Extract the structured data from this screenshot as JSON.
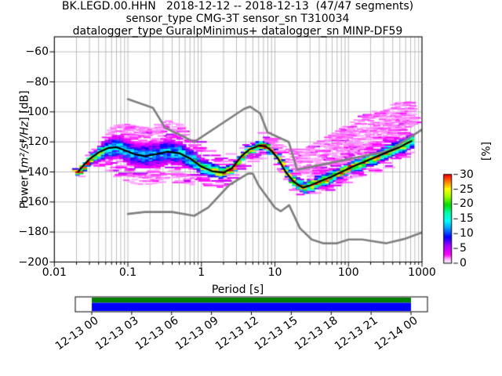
{
  "titles": {
    "line1": "BK.LEGD.00.HHN   2018-12-12 -- 2018-12-13  (47/47 segments)",
    "line2": "sensor_type CMG-3T sensor_sn T310034",
    "line3": "datalogger_type GuralpMinimus+ datalogger_sn MINP-DF59"
  },
  "axes": {
    "xlabel": "Period [s]",
    "ylabel_prefix": "Power [",
    "ylabel_math": "m²/s⁴/Hz",
    "ylabel_suffix": "] [dB]",
    "x_tick_labels": [
      "0.01",
      "0.1",
      "1",
      "10",
      "100",
      "1000"
    ],
    "x_tick_values": [
      0.01,
      0.1,
      1,
      10,
      100,
      1000
    ],
    "y_tick_labels": [
      "−60",
      "−80",
      "−100",
      "−120",
      "−140",
      "−160",
      "−180",
      "−200"
    ],
    "y_tick_values": [
      -60,
      -80,
      -100,
      -120,
      -140,
      -160,
      -180,
      -200
    ],
    "xlim": [
      0.01,
      1000
    ],
    "ylim": [
      -200,
      -50
    ],
    "xscale": "log",
    "grid_color": "#b4b4b4",
    "spine_color": "#000000"
  },
  "colorbar": {
    "label": "[%]",
    "tick_labels": [
      "0",
      "5",
      "10",
      "15",
      "20",
      "25",
      "30"
    ],
    "tick_values": [
      0,
      5,
      10,
      15,
      20,
      25,
      30
    ],
    "range": [
      0,
      30
    ],
    "colormap_stops": [
      [
        0.0,
        "#ffffff"
      ],
      [
        0.05,
        "#ffb3ff"
      ],
      [
        0.1,
        "#ff00ff"
      ],
      [
        0.2,
        "#aa00ff"
      ],
      [
        0.3,
        "#0000ff"
      ],
      [
        0.4,
        "#00a0ff"
      ],
      [
        0.48,
        "#00ffff"
      ],
      [
        0.57,
        "#00ffaa"
      ],
      [
        0.66,
        "#00dd00"
      ],
      [
        0.76,
        "#aaff00"
      ],
      [
        0.84,
        "#ffff00"
      ],
      [
        0.92,
        "#ff8000"
      ],
      [
        1.0,
        "#ff0000"
      ]
    ]
  },
  "timeline": {
    "tick_labels": [
      "12-13 00",
      "12-13 03",
      "12-13 06",
      "12-13 09",
      "12-13 12",
      "12-13 15",
      "12-13 18",
      "12-13 21",
      "12-14 00"
    ],
    "coverage_top_color": "#007f00",
    "coverage_bottom_color": "#0000ff",
    "bar_background": "#ffffff"
  },
  "chart_data": {
    "type": "heatmap",
    "title": "BK.LEGD.00.HHN   2018-12-12 -- 2018-12-13  (47/47 segments)",
    "xlabel": "Period [s]",
    "ylabel": "Power [m²/s⁴/Hz] [dB]",
    "xlim": [
      0.01,
      1000
    ],
    "xscale": "log",
    "ylim": [
      -200,
      -50
    ],
    "grid": true,
    "colorbar_label": "[%]",
    "percent_range": [
      0,
      30
    ],
    "mode_line": {
      "name": "psd-mode-line",
      "color": "#000000",
      "points": [
        [
          0.021,
          -140
        ],
        [
          0.025,
          -135.5
        ],
        [
          0.03,
          -131.5
        ],
        [
          0.04,
          -127
        ],
        [
          0.055,
          -124
        ],
        [
          0.07,
          -123.5
        ],
        [
          0.09,
          -125.5
        ],
        [
          0.12,
          -128
        ],
        [
          0.17,
          -129.5
        ],
        [
          0.25,
          -128
        ],
        [
          0.35,
          -126.5
        ],
        [
          0.5,
          -127.5
        ],
        [
          0.7,
          -131
        ],
        [
          1.0,
          -136.5
        ],
        [
          1.4,
          -139.5
        ],
        [
          2.0,
          -140.5
        ],
        [
          2.6,
          -137.5
        ],
        [
          3.5,
          -129.5
        ],
        [
          4.5,
          -125
        ],
        [
          6.0,
          -122.5
        ],
        [
          7.5,
          -123
        ],
        [
          9.0,
          -126
        ],
        [
          11,
          -131
        ],
        [
          14,
          -140
        ],
        [
          18,
          -146.5
        ],
        [
          24,
          -150.5
        ],
        [
          30,
          -149
        ],
        [
          42,
          -146
        ],
        [
          60,
          -143
        ],
        [
          85,
          -139.5
        ],
        [
          120,
          -136
        ],
        [
          170,
          -133
        ],
        [
          250,
          -129.5
        ],
        [
          350,
          -126.5
        ],
        [
          500,
          -123.5
        ],
        [
          620,
          -121
        ],
        [
          720,
          -119.5
        ]
      ]
    },
    "noise_models": {
      "color": "#808080",
      "nhnm": [
        [
          0.1,
          -91.5
        ],
        [
          0.22,
          -97.4
        ],
        [
          0.32,
          -110.5
        ],
        [
          0.8,
          -120.0
        ],
        [
          3.8,
          -98.0
        ],
        [
          4.6,
          -96.5
        ],
        [
          6.3,
          -101.0
        ],
        [
          7.9,
          -113.5
        ],
        [
          15.4,
          -120.0
        ],
        [
          20.0,
          -138.5
        ],
        [
          354.8,
          -126.0
        ],
        [
          1000,
          -111.8
        ]
      ],
      "nlnm": [
        [
          0.1,
          -168.0
        ],
        [
          0.17,
          -166.7
        ],
        [
          0.4,
          -166.7
        ],
        [
          0.8,
          -169.2
        ],
        [
          1.24,
          -163.7
        ],
        [
          2.4,
          -148.6
        ],
        [
          4.3,
          -141.1
        ],
        [
          5.0,
          -141.1
        ],
        [
          6.0,
          -149.0
        ],
        [
          10.0,
          -163.8
        ],
        [
          12.0,
          -166.2
        ],
        [
          15.6,
          -162.1
        ],
        [
          21.9,
          -177.5
        ],
        [
          31.6,
          -185.0
        ],
        [
          45.0,
          -187.5
        ],
        [
          70.0,
          -187.5
        ],
        [
          101.0,
          -185.0
        ],
        [
          154.0,
          -185.0
        ],
        [
          328.0,
          -187.5
        ],
        [
          600.0,
          -184.4
        ],
        [
          1000,
          -180.3
        ]
      ]
    },
    "histogram": {
      "description": "PPSD histogram envelope around mode line: [period_s, dense_halfwidth_dB, upper_outlier_extent_dB, lower_outlier_extent_dB]",
      "period_range": [
        0.0195,
        760
      ],
      "envelope": [
        [
          0.021,
          2.2,
          3,
          3
        ],
        [
          0.035,
          4.5,
          5,
          6
        ],
        [
          0.06,
          8,
          5,
          12
        ],
        [
          0.1,
          8,
          10,
          13
        ],
        [
          0.2,
          9,
          10,
          11
        ],
        [
          0.35,
          8.5,
          12,
          12.5
        ],
        [
          0.6,
          7,
          11,
          12
        ],
        [
          1.2,
          5,
          9,
          9
        ],
        [
          2.2,
          3.5,
          9,
          7
        ],
        [
          3.5,
          3.2,
          6,
          6
        ],
        [
          6,
          3,
          5,
          6
        ],
        [
          9,
          3.2,
          8,
          5
        ],
        [
          13,
          3.8,
          12,
          5
        ],
        [
          22,
          4.2,
          21,
          5
        ],
        [
          35,
          4,
          23,
          5
        ],
        [
          70,
          4,
          25,
          5
        ],
        [
          150,
          4.2,
          27,
          5
        ],
        [
          300,
          4.5,
          27,
          5
        ],
        [
          550,
          5,
          25,
          6
        ],
        [
          740,
          5,
          21,
          6
        ]
      ]
    }
  }
}
